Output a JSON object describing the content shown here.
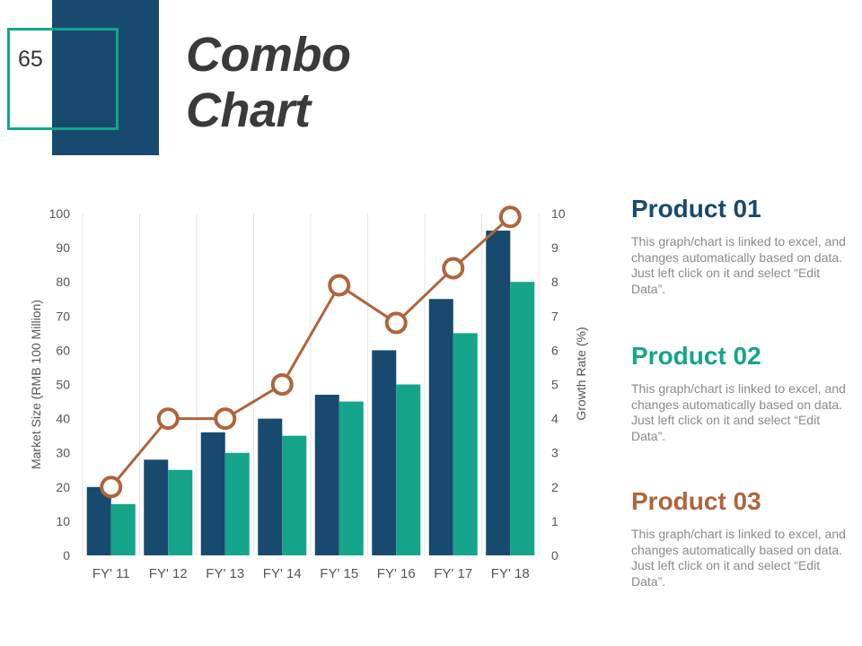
{
  "slide": {
    "page_number": "65",
    "title_line1": "Combo",
    "title_line2": "Chart"
  },
  "colors": {
    "navy": "#174a6e",
    "teal": "#14a58a",
    "brown": "#b0643a",
    "title": "#3a3a3a"
  },
  "products": [
    {
      "title": "Product 01",
      "text": "This graph/chart is linked to excel, and changes automatically based on data. Just left click on it and select “Edit Data”."
    },
    {
      "title": "Product 02",
      "text": "This graph/chart is linked to excel, and changes automatically based on data. Just left click on it and select “Edit Data”."
    },
    {
      "title": "Product 03",
      "text": "This graph/chart is linked to excel, and changes automatically based on data. Just left click on it and select “Edit Data”."
    }
  ],
  "chart_data": {
    "type": "bar",
    "title": "",
    "categories": [
      "FY' 11",
      "FY' 12",
      "FY' 13",
      "FY' 14",
      "FY' 15",
      "FY' 16",
      "FY' 17",
      "FY' 18"
    ],
    "series": [
      {
        "name": "Product 01",
        "kind": "bar",
        "axis": "left",
        "color": "#174a6e",
        "values": [
          20,
          28,
          36,
          40,
          47,
          60,
          75,
          95
        ]
      },
      {
        "name": "Product 02",
        "kind": "bar",
        "axis": "left",
        "color": "#14a58a",
        "values": [
          15,
          25,
          30,
          35,
          45,
          50,
          65,
          80
        ]
      },
      {
        "name": "Product 03",
        "kind": "line",
        "axis": "right",
        "color": "#b0643a",
        "values": [
          2,
          4,
          4,
          5,
          7.9,
          6.8,
          8.4,
          9.9
        ]
      }
    ],
    "ylabel": "Market Size (RMB 100 Million)",
    "y2label": "Growth Rate (%)",
    "ylim": [
      0,
      100
    ],
    "y2lim": [
      0,
      10
    ],
    "yticks": [
      0,
      10,
      20,
      30,
      40,
      50,
      60,
      70,
      80,
      90,
      100
    ],
    "y2ticks": [
      0,
      1,
      2,
      3,
      4,
      5,
      6,
      7,
      8,
      9,
      10
    ],
    "grid": "vertical"
  }
}
